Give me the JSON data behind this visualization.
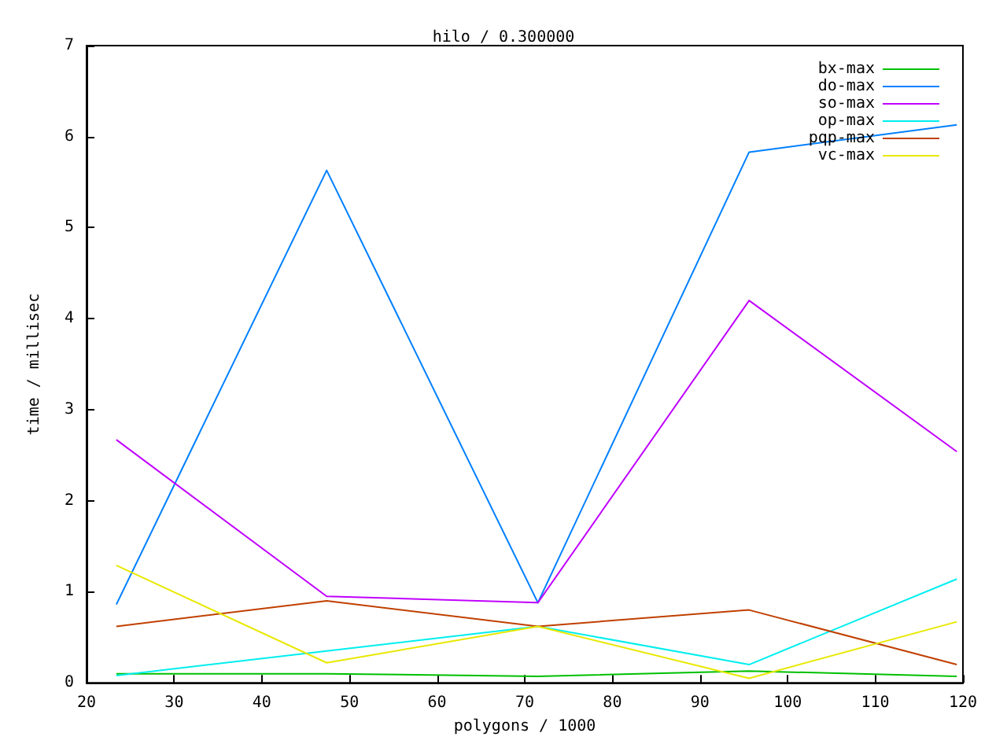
{
  "chart_data": {
    "type": "line",
    "title": "hilo / 0.300000",
    "xlabel": "polygons / 1000",
    "ylabel": "time / millisec",
    "x": [
      23.4,
      47.4,
      71.5,
      95.6,
      119.3
    ],
    "series": [
      {
        "name": "bx-max",
        "color": "#00c000",
        "values": [
          0.1,
          0.1,
          0.07,
          0.13,
          0.07
        ]
      },
      {
        "name": "do-max",
        "color": "#0080ff",
        "values": [
          0.86,
          5.63,
          0.88,
          5.83,
          6.13
        ]
      },
      {
        "name": "so-max",
        "color": "#c000ff",
        "values": [
          2.67,
          0.95,
          0.88,
          4.2,
          2.54
        ]
      },
      {
        "name": "op-max",
        "color": "#00eeee",
        "values": [
          0.08,
          0.35,
          0.62,
          0.2,
          1.14
        ]
      },
      {
        "name": "pqp-max",
        "color": "#c04000",
        "values": [
          0.62,
          0.9,
          0.62,
          0.8,
          0.2
        ]
      },
      {
        "name": "vc-max",
        "color": "#e8e800",
        "values": [
          1.29,
          0.22,
          0.62,
          0.05,
          0.67
        ]
      }
    ],
    "xlim": [
      20,
      120
    ],
    "xticks": [
      20,
      30,
      40,
      50,
      60,
      70,
      80,
      90,
      100,
      110,
      120
    ],
    "ylim": [
      0,
      7
    ],
    "yticks": [
      0,
      1,
      2,
      3,
      4,
      5,
      6,
      7
    ],
    "grid": false,
    "legend": "top right",
    "marker": "none",
    "line_style": "solid"
  }
}
